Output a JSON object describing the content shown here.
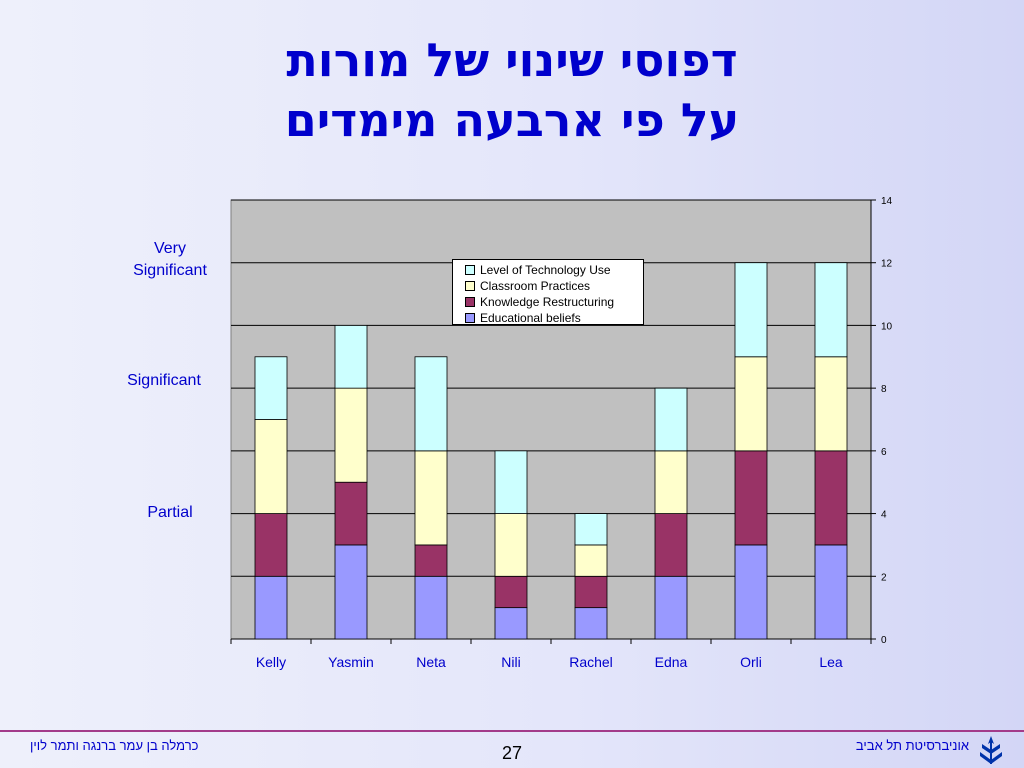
{
  "slide": {
    "title_line1": "דפוסי שינוי של מורות",
    "title_line2": "על פי ארבעה מימדים",
    "side_labels": {
      "very_significant": "Very\nSignificant",
      "significant": "Significant",
      "partial": "Partial"
    },
    "footer_left": "כרמלה בן עמר ברנגה ותמר לוין",
    "footer_right": "אוניברסיטת תל אביב",
    "page_number": "27",
    "logo_icon": "university-emblem-icon"
  },
  "chart_data": {
    "type": "bar",
    "stacked": true,
    "categories": [
      "Kelly",
      "Yasmin",
      "Neta",
      "Nili",
      "Rachel",
      "Edna",
      "Orli",
      "Lea"
    ],
    "series": [
      {
        "name": "Educational beliefs",
        "color": "#9999ff",
        "values": [
          2,
          3,
          2,
          1,
          1,
          2,
          3,
          3
        ]
      },
      {
        "name": "Knowledge Restructuring",
        "color": "#993366",
        "values": [
          2,
          2,
          1,
          1,
          1,
          2,
          3,
          3
        ]
      },
      {
        "name": "Classroom Practices",
        "color": "#ffffcc",
        "values": [
          3,
          3,
          3,
          2,
          1,
          2,
          3,
          3
        ]
      },
      {
        "name": "Level of Technology Use",
        "color": "#ccffff",
        "values": [
          2,
          2,
          3,
          2,
          1,
          2,
          3,
          3
        ]
      }
    ],
    "legend_order": [
      "Level of Technology Use",
      "Classroom Practices",
      "Knowledge Restructuring",
      "Educational beliefs"
    ],
    "yticks": [
      0,
      2,
      4,
      6,
      8,
      10,
      12,
      14
    ],
    "ylim": [
      0,
      14
    ],
    "y_axis_side": "right",
    "grid": true,
    "legend_position": "top-center",
    "plot_background": "#c0c0c0"
  }
}
